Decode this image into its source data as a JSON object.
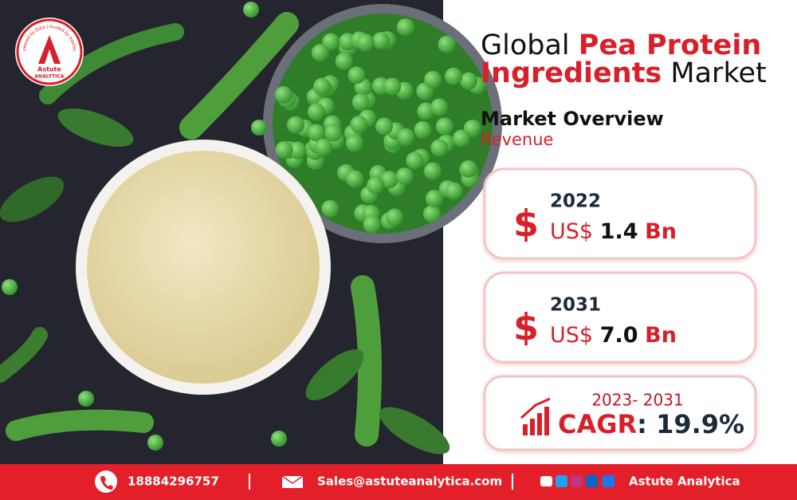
{
  "logo": {
    "name": "Astute",
    "tagline": "ANALYTICA",
    "ring_text": "Powered by Data | Guided by Intellect"
  },
  "header": {
    "title_parts": [
      "Global",
      "Pea Protein",
      "Ingredients",
      "Market"
    ],
    "subtitle": "Market Overview",
    "metric": "Revenue"
  },
  "cards": [
    {
      "currency_symbol": "$",
      "year": "2022",
      "currency": "US$",
      "value": "1.4",
      "unit": "Bn"
    },
    {
      "currency_symbol": "$",
      "year": "2031",
      "currency": "US$",
      "value": "7.0",
      "unit": "Bn"
    }
  ],
  "cagr": {
    "period": "2023- 2031",
    "label": "CAGR",
    "separator": ":",
    "value": "19.9%"
  },
  "footer": {
    "phone": "18884296757",
    "email": "Sales@astuteanalytica.com",
    "brand": "Astute Analytica"
  }
}
